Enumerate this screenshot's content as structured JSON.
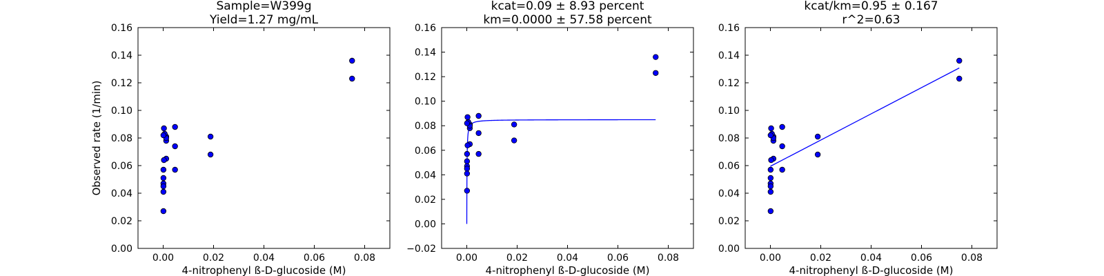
{
  "chart_data": [
    {
      "type": "scatter",
      "title_lines": [
        "Sample=W399g",
        "Yield=1.27 mg/mL"
      ],
      "xlabel": "4-nitrophenyl ß-D-glucoside (M)",
      "ylabel": "Observed rate (1/min)",
      "xlim": [
        -0.01,
        0.09
      ],
      "ylim": [
        0.0,
        0.16
      ],
      "xticks": [
        "0.00",
        "0.02",
        "0.04",
        "0.06",
        "0.08"
      ],
      "yticks": [
        "0.00",
        "0.02",
        "0.04",
        "0.06",
        "0.08",
        "0.10",
        "0.12",
        "0.14",
        "0.16"
      ],
      "points": {
        "x": [
          0.075,
          0.075,
          0.0188,
          0.0188,
          0.0047,
          0.0047,
          0.0047,
          0.0012,
          0.0012,
          0.0012,
          0.0012,
          0.0006,
          0.0003,
          0.0003,
          0.0001,
          0.0001,
          0.0001,
          0.0001,
          0.0001,
          0.0001,
          0.0001
        ],
        "y": [
          0.136,
          0.123,
          0.081,
          0.068,
          0.088,
          0.074,
          0.057,
          0.081,
          0.078,
          0.065,
          0.08,
          0.083,
          0.087,
          0.064,
          0.082,
          0.057,
          0.051,
          0.047,
          0.045,
          0.041,
          0.027
        ]
      }
    },
    {
      "type": "scatter",
      "title_lines": [
        "kcat=0.09 ± 8.93 percent",
        "km=0.0000 ± 57.58 percent"
      ],
      "xlabel": "4-nitrophenyl ß-D-glucoside (M)",
      "ylabel": "",
      "xlim": [
        -0.01,
        0.09
      ],
      "ylim": [
        -0.02,
        0.16
      ],
      "xticks": [
        "0.00",
        "0.02",
        "0.04",
        "0.06",
        "0.08"
      ],
      "yticks": [
        "−0.02",
        "0.00",
        "0.02",
        "0.04",
        "0.06",
        "0.08",
        "0.10",
        "0.12",
        "0.14",
        "0.16"
      ],
      "points": {
        "x": [
          0.075,
          0.075,
          0.0188,
          0.0188,
          0.0047,
          0.0047,
          0.0047,
          0.0012,
          0.0012,
          0.0012,
          0.0012,
          0.0006,
          0.0003,
          0.0003,
          0.0001,
          0.0001,
          0.0001,
          0.0001,
          0.0001,
          0.0001,
          0.0001
        ],
        "y": [
          0.136,
          0.123,
          0.081,
          0.068,
          0.088,
          0.074,
          0.057,
          0.081,
          0.078,
          0.065,
          0.08,
          0.083,
          0.087,
          0.064,
          0.082,
          0.057,
          0.051,
          0.047,
          0.045,
          0.041,
          0.027
        ]
      },
      "fit": {
        "kind": "michaelis-menten",
        "vmax": 0.085,
        "km": 8e-05,
        "x_range": [
          0.0,
          0.075
        ]
      }
    },
    {
      "type": "scatter",
      "title_lines": [
        "kcat/km=0.95 ± 0.167",
        "r^2=0.63"
      ],
      "xlabel": "4-nitrophenyl ß-D-glucoside (M)",
      "ylabel": "",
      "xlim": [
        -0.01,
        0.09
      ],
      "ylim": [
        0.0,
        0.16
      ],
      "xticks": [
        "0.00",
        "0.02",
        "0.04",
        "0.06",
        "0.08"
      ],
      "yticks": [
        "0.00",
        "0.02",
        "0.04",
        "0.06",
        "0.08",
        "0.10",
        "0.12",
        "0.14",
        "0.16"
      ],
      "points": {
        "x": [
          0.075,
          0.075,
          0.0188,
          0.0188,
          0.0047,
          0.0047,
          0.0047,
          0.0012,
          0.0012,
          0.0012,
          0.0012,
          0.0006,
          0.0003,
          0.0003,
          0.0001,
          0.0001,
          0.0001,
          0.0001,
          0.0001,
          0.0001,
          0.0001
        ],
        "y": [
          0.136,
          0.123,
          0.081,
          0.068,
          0.088,
          0.074,
          0.057,
          0.081,
          0.078,
          0.065,
          0.08,
          0.083,
          0.087,
          0.064,
          0.082,
          0.057,
          0.051,
          0.047,
          0.045,
          0.041,
          0.027
        ]
      },
      "fit": {
        "kind": "linear",
        "slope": 0.95,
        "intercept": 0.0595,
        "x_range": [
          0.0,
          0.075
        ]
      }
    }
  ],
  "colors": {
    "marker_fill": "#0000ff",
    "marker_edge": "#000000",
    "fit_line": "#0000ff",
    "axes": "#000000"
  }
}
